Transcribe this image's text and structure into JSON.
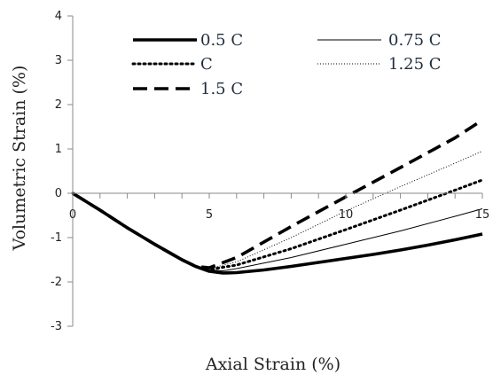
{
  "chart_data": {
    "type": "line",
    "title": "",
    "xlabel": "Axial Strain (%)",
    "ylabel": "Volumetric Strain (%)",
    "xlim": [
      0,
      15
    ],
    "ylim": [
      -3,
      4
    ],
    "xticks": [
      0,
      5,
      10,
      15
    ],
    "yticks": [
      4,
      3,
      2,
      1,
      0,
      -1,
      -2,
      -3
    ],
    "grid": false,
    "legend_position": "top",
    "series": [
      {
        "name": "0.5 C",
        "style": "solid-thick",
        "x": [
          0,
          1,
          2,
          3,
          4,
          4.5,
          5,
          5.5,
          6,
          7,
          8,
          9,
          10,
          11,
          12,
          13,
          14,
          15
        ],
        "y": [
          0,
          -0.38,
          -0.78,
          -1.15,
          -1.5,
          -1.65,
          -1.76,
          -1.8,
          -1.79,
          -1.73,
          -1.65,
          -1.56,
          -1.47,
          -1.38,
          -1.28,
          -1.17,
          -1.05,
          -0.92
        ]
      },
      {
        "name": "0.75 C",
        "style": "solid-thin",
        "x": [
          0,
          1,
          2,
          3,
          4,
          4.5,
          5,
          5.5,
          6,
          8,
          10,
          12,
          14,
          15
        ],
        "y": [
          0,
          -0.38,
          -0.78,
          -1.15,
          -1.5,
          -1.65,
          -1.73,
          -1.75,
          -1.7,
          -1.45,
          -1.15,
          -0.85,
          -0.52,
          -0.35
        ]
      },
      {
        "name": "C",
        "style": "dotted",
        "x": [
          0,
          1,
          2,
          3,
          4,
          4.5,
          5,
          6,
          8,
          10,
          12,
          14,
          15
        ],
        "y": [
          0,
          -0.38,
          -0.78,
          -1.15,
          -1.5,
          -1.65,
          -1.72,
          -1.62,
          -1.25,
          -0.82,
          -0.38,
          0.07,
          0.3
        ]
      },
      {
        "name": "1.25 C",
        "style": "dotted-fine",
        "x": [
          0,
          1,
          2,
          3,
          4,
          4.5,
          5,
          6,
          8,
          10,
          12,
          14,
          15
        ],
        "y": [
          0,
          -0.38,
          -0.78,
          -1.15,
          -1.5,
          -1.65,
          -1.7,
          -1.55,
          -1.0,
          -0.4,
          0.15,
          0.68,
          0.95
        ]
      },
      {
        "name": "1.5 C",
        "style": "dashed",
        "x": [
          0,
          1,
          2,
          3,
          4,
          4.5,
          5,
          6,
          8,
          10,
          12,
          14,
          15
        ],
        "y": [
          0,
          -0.38,
          -0.78,
          -1.15,
          -1.5,
          -1.65,
          -1.68,
          -1.45,
          -0.75,
          -0.08,
          0.58,
          1.25,
          1.65
        ]
      }
    ]
  }
}
